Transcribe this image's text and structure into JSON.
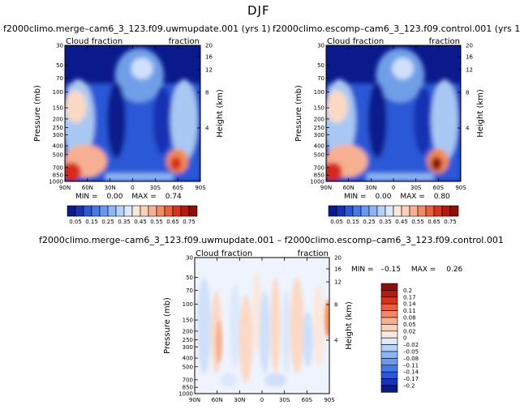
{
  "page": {
    "title": "DJF"
  },
  "colors": {
    "dark_blue": "#0a1a8c",
    "mid_blue": "#2c58d6",
    "light_blue": "#a9c8f3",
    "pale": "#e8eefc",
    "peach": "#fbd9c5",
    "orange": "#f28a52",
    "red": "#d52a1a",
    "dark_red": "#8a0e0a"
  },
  "chart_data": [
    {
      "type": "heatmap",
      "title": "f2000climo.merge–cam6_3_123.f09.uwmupdate.001 (yrs 1)",
      "left_label": "Cloud fraction",
      "right_label": "fraction",
      "xlabel": "",
      "ylabel": "Pressure (mb)",
      "y2label": "Height (km)",
      "x_ticks": [
        "90N",
        "60N",
        "30N",
        "0",
        "30S",
        "60S",
        "90S"
      ],
      "y_ticks": [
        "30",
        "50",
        "70",
        "100",
        "150",
        "200",
        "250",
        "300",
        "400",
        "500",
        "700",
        "850",
        "1000"
      ],
      "y2_ticks": [
        "20",
        "16",
        "12",
        "8",
        "4"
      ],
      "ylim": [
        1000,
        30
      ],
      "stats": {
        "min_label": "MIN =",
        "min": "0.00",
        "max_label": "MAX =",
        "max": "0.74"
      },
      "colorbar": {
        "orientation": "horizontal",
        "labels": [
          "0.05",
          "0.15",
          "0.25",
          "0.35",
          "0.45",
          "0.55",
          "0.65",
          "0.75"
        ],
        "colors": [
          "#0a1a8c",
          "#1932b4",
          "#2c58d6",
          "#4678e6",
          "#6a98ef",
          "#8db5f4",
          "#b6d1f7",
          "#dce8fb",
          "#fbe8dc",
          "#fbd0b8",
          "#f7b091",
          "#f28a66",
          "#ea5f3e",
          "#d8331d",
          "#b51a10",
          "#8a0e0a"
        ]
      }
    },
    {
      "type": "heatmap",
      "title": "f2000climo.escomp–cam6_3_123.f09.control.001 (yrs 1)",
      "left_label": "Cloud fraction",
      "right_label": "fraction",
      "xlabel": "",
      "ylabel": "Pressure (mb)",
      "y2label": "Height (km)",
      "x_ticks": [
        "90N",
        "60N",
        "30N",
        "0",
        "30S",
        "60S",
        "90S"
      ],
      "y_ticks": [
        "30",
        "50",
        "70",
        "100",
        "150",
        "200",
        "250",
        "300",
        "400",
        "500",
        "700",
        "850",
        "1000"
      ],
      "y2_ticks": [
        "20",
        "16",
        "12",
        "8",
        "4"
      ],
      "ylim": [
        1000,
        30
      ],
      "stats": {
        "min_label": "MIN =",
        "min": "0.00",
        "max_label": "MAX =",
        "max": "0.80"
      },
      "colorbar": {
        "orientation": "horizontal",
        "labels": [
          "0.05",
          "0.15",
          "0.25",
          "0.35",
          "0.45",
          "0.55",
          "0.65",
          "0.75"
        ],
        "colors": [
          "#0a1a8c",
          "#1932b4",
          "#2c58d6",
          "#4678e6",
          "#6a98ef",
          "#8db5f4",
          "#b6d1f7",
          "#dce8fb",
          "#fbe8dc",
          "#fbd0b8",
          "#f7b091",
          "#f28a66",
          "#ea5f3e",
          "#d8331d",
          "#b51a10",
          "#8a0e0a"
        ]
      }
    },
    {
      "type": "heatmap",
      "title": "f2000climo.merge–cam6_3_123.f09.uwmupdate.001 – f2000climo.escomp–cam6_3_123.f09.control.001",
      "left_label": "Cloud fraction",
      "right_label": "fraction",
      "xlabel": "",
      "ylabel": "Pressure (mb)",
      "y2label": "Height (km)",
      "x_ticks": [
        "90N",
        "60N",
        "30N",
        "0",
        "30S",
        "60S",
        "90S"
      ],
      "y_ticks": [
        "30",
        "50",
        "70",
        "100",
        "150",
        "200",
        "250",
        "300",
        "400",
        "500",
        "700",
        "850",
        "1000"
      ],
      "y2_ticks": [
        "20",
        "16",
        "12",
        "8",
        "4"
      ],
      "ylim": [
        1000,
        30
      ],
      "stats": {
        "min_label": "MIN =",
        "min": "–0.15",
        "max_label": "MAX =",
        "max": "0.26"
      },
      "colorbar": {
        "orientation": "vertical",
        "labels": [
          "0.2",
          "0.17",
          "0.14",
          "0.11",
          "0.08",
          "0.05",
          "0.02",
          "0",
          "–0.02",
          "–0.05",
          "–0.08",
          "–0.11",
          "–0.14",
          "–0.17",
          "–0.2"
        ],
        "colors": [
          "#8a0e0a",
          "#b51a10",
          "#d8331d",
          "#ea5f3e",
          "#f28a66",
          "#f7b091",
          "#fbd0b8",
          "#fbe8dc",
          "#dce8fb",
          "#b6d1f7",
          "#8db5f4",
          "#6a98ef",
          "#4678e6",
          "#2c58d6",
          "#1932b4",
          "#0a1a8c"
        ]
      }
    }
  ]
}
